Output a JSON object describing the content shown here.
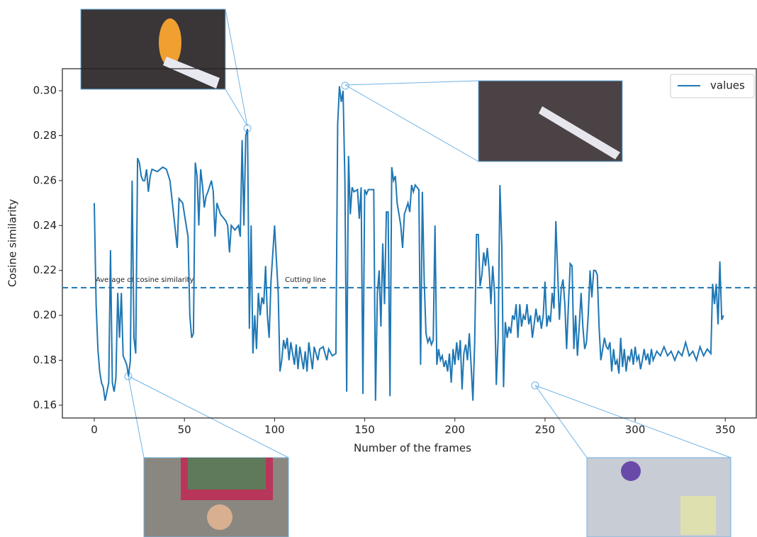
{
  "chart_data": {
    "type": "line",
    "x_label": "Number of the frames",
    "y_label": "Cosine similarity",
    "legend": "upper right",
    "xlim": [
      -17.7,
      367.2
    ],
    "ylim": [
      0.1543,
      0.3098
    ],
    "xticks": [
      0,
      50,
      100,
      150,
      200,
      250,
      300,
      350
    ],
    "yticks": [
      0.16,
      0.18,
      {
        "value": 0.2,
        "label": "0.20"
      },
      0.22,
      0.24,
      0.26,
      0.28,
      {
        "value": 0.3,
        "label": "0.30"
      }
    ],
    "hline": {
      "value": 0.2123,
      "color": "#1f77b4",
      "labels": [
        "Average of cosine similarity",
        "Cutting line"
      ]
    },
    "series": [
      {
        "name": "values",
        "color": "#1f77b4",
        "x": [
          0,
          1,
          2,
          3,
          4,
          5,
          6,
          7,
          8,
          9,
          10,
          11,
          12,
          13,
          14,
          15,
          16,
          17,
          18,
          19,
          20,
          21,
          22,
          23,
          24,
          25,
          26,
          27,
          28,
          29,
          30,
          31,
          32,
          35,
          38,
          40,
          42,
          44,
          46,
          47,
          49,
          51,
          52,
          53,
          54,
          55,
          56,
          57,
          58,
          59,
          60,
          61,
          62,
          63,
          65,
          66,
          67,
          68,
          70,
          72,
          73,
          74,
          75,
          76,
          78,
          80,
          81,
          82,
          83,
          84,
          85,
          86,
          87,
          88,
          89,
          90,
          91,
          92,
          93,
          94,
          95,
          96,
          97,
          98,
          100,
          101,
          102,
          103,
          104,
          105,
          106,
          107,
          108,
          109,
          111,
          112,
          113,
          114,
          116,
          117,
          118,
          119,
          121,
          122,
          124,
          125,
          127,
          129,
          130,
          132,
          134,
          135,
          136,
          137,
          138,
          139,
          140,
          141,
          142,
          143,
          144,
          146,
          147,
          148,
          149,
          150,
          151,
          152,
          154,
          155,
          156,
          157,
          158,
          159,
          160,
          161,
          162,
          163,
          164,
          165,
          166,
          167,
          168,
          169,
          170,
          171,
          172,
          174,
          175,
          176,
          177,
          178,
          179,
          180,
          181,
          182,
          183,
          184,
          185,
          186,
          187,
          188,
          189,
          190,
          191,
          192,
          193,
          194,
          195,
          196,
          197,
          198,
          199,
          200,
          201,
          202,
          203,
          204,
          205,
          206,
          207,
          208,
          209,
          210,
          211,
          212,
          213,
          214,
          215,
          216,
          217,
          218,
          219,
          220,
          221,
          222,
          223,
          224,
          225,
          226,
          227,
          228,
          229,
          230,
          231,
          232,
          233,
          234,
          235,
          236,
          237,
          238,
          239,
          240,
          241,
          242,
          243,
          244,
          245,
          246,
          247,
          248,
          249,
          250,
          251,
          252,
          253,
          254,
          255,
          256,
          257,
          258,
          259,
          260,
          261,
          262,
          263,
          264,
          265,
          266,
          267,
          268,
          269,
          270,
          271,
          272,
          273,
          274,
          275,
          276,
          277,
          278,
          279,
          280,
          281,
          282,
          283,
          284,
          285,
          286,
          287,
          288,
          289,
          290,
          291,
          292,
          293,
          294,
          295,
          296,
          297,
          298,
          299,
          300,
          301,
          302,
          303,
          304,
          305,
          306,
          307,
          308,
          309,
          310,
          312,
          314,
          316,
          318,
          320,
          322,
          324,
          326,
          328,
          330,
          332,
          334,
          336,
          338,
          340,
          342,
          343,
          344,
          345,
          346,
          347,
          348,
          349
        ],
        "values": [
          0.25,
          0.205,
          0.185,
          0.175,
          0.17,
          0.168,
          0.162,
          0.166,
          0.17,
          0.229,
          0.17,
          0.166,
          0.172,
          0.21,
          0.19,
          0.21,
          0.182,
          0.18,
          0.178,
          0.173,
          0.18,
          0.26,
          0.19,
          0.183,
          0.27,
          0.268,
          0.262,
          0.26,
          0.26,
          0.265,
          0.255,
          0.262,
          0.265,
          0.264,
          0.266,
          0.265,
          0.26,
          0.245,
          0.23,
          0.252,
          0.25,
          0.24,
          0.235,
          0.2,
          0.19,
          0.192,
          0.268,
          0.262,
          0.24,
          0.265,
          0.258,
          0.248,
          0.253,
          0.255,
          0.26,
          0.255,
          0.235,
          0.25,
          0.245,
          0.243,
          0.242,
          0.24,
          0.228,
          0.24,
          0.238,
          0.24,
          0.235,
          0.278,
          0.24,
          0.28,
          0.283,
          0.194,
          0.24,
          0.183,
          0.2,
          0.185,
          0.21,
          0.2,
          0.208,
          0.205,
          0.222,
          0.2,
          0.19,
          0.215,
          0.24,
          0.225,
          0.21,
          0.175,
          0.18,
          0.189,
          0.185,
          0.19,
          0.18,
          0.188,
          0.178,
          0.187,
          0.176,
          0.186,
          0.176,
          0.184,
          0.175,
          0.188,
          0.176,
          0.186,
          0.18,
          0.185,
          0.186,
          0.18,
          0.185,
          0.182,
          0.183,
          0.285,
          0.302,
          0.295,
          0.3,
          0.26,
          0.166,
          0.271,
          0.245,
          0.257,
          0.255,
          0.256,
          0.243,
          0.257,
          0.165,
          0.256,
          0.254,
          0.256,
          0.256,
          0.256,
          0.162,
          0.21,
          0.22,
          0.195,
          0.232,
          0.205,
          0.246,
          0.246,
          0.164,
          0.266,
          0.26,
          0.262,
          0.25,
          0.245,
          0.24,
          0.23,
          0.245,
          0.25,
          0.246,
          0.258,
          0.255,
          0.258,
          0.257,
          0.256,
          0.178,
          0.255,
          0.215,
          0.192,
          0.188,
          0.19,
          0.187,
          0.189,
          0.24,
          0.178,
          0.185,
          0.18,
          0.182,
          0.177,
          0.18,
          0.175,
          0.183,
          0.17,
          0.185,
          0.178,
          0.188,
          0.18,
          0.189,
          0.167,
          0.183,
          0.187,
          0.18,
          0.192,
          0.178,
          0.162,
          0.188,
          0.236,
          0.236,
          0.213,
          0.218,
          0.228,
          0.222,
          0.23,
          0.22,
          0.205,
          0.222,
          0.21,
          0.169,
          0.19,
          0.258,
          0.232,
          0.168,
          0.197,
          0.19,
          0.195,
          0.192,
          0.2,
          0.198,
          0.205,
          0.19,
          0.205,
          0.195,
          0.2,
          0.198,
          0.205,
          0.196,
          0.2,
          0.19,
          0.196,
          0.203,
          0.197,
          0.2,
          0.194,
          0.2,
          0.215,
          0.195,
          0.2,
          0.197,
          0.21,
          0.203,
          0.242,
          0.22,
          0.198,
          0.212,
          0.216,
          0.205,
          0.185,
          0.205,
          0.223,
          0.222,
          0.185,
          0.2,
          0.182,
          0.195,
          0.21,
          0.195,
          0.185,
          0.188,
          0.2,
          0.22,
          0.208,
          0.22,
          0.22,
          0.218,
          0.195,
          0.18,
          0.185,
          0.19,
          0.186,
          0.185,
          0.188,
          0.175,
          0.185,
          0.178,
          0.18,
          0.174,
          0.19,
          0.177,
          0.185,
          0.175,
          0.182,
          0.18,
          0.185,
          0.178,
          0.186,
          0.18,
          0.182,
          0.176,
          0.18,
          0.185,
          0.18,
          0.183,
          0.178,
          0.185,
          0.18,
          0.184,
          0.182,
          0.186,
          0.182,
          0.184,
          0.18,
          0.184,
          0.182,
          0.188,
          0.182,
          0.184,
          0.18,
          0.186,
          0.182,
          0.185,
          0.183,
          0.214,
          0.205,
          0.214,
          0.196,
          0.224,
          0.198,
          0.2
        ]
      }
    ]
  }
}
